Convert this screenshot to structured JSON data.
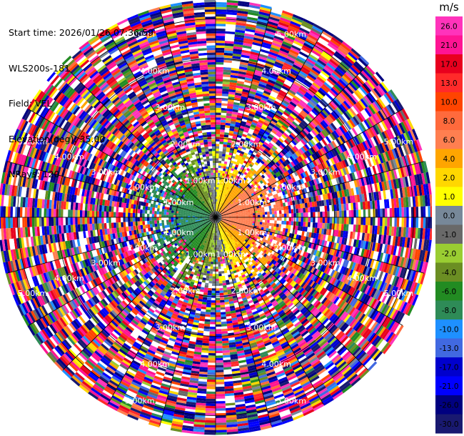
{
  "header": {
    "start_time": "Start time: 2026/01/26 07:36:59",
    "instrument": "WLS200s-181",
    "field": "Field: VEL",
    "elevation": "Elevation(deg): 35.00",
    "nrays": "NRays: 120"
  },
  "chart_data": {
    "type": "heatmap",
    "projection": "polar-ppi",
    "field": "VEL",
    "units": "m/s",
    "range_rings_km": [
      1,
      2,
      3,
      4,
      5
    ],
    "range_ring_labels": [
      "1.00km",
      "2.00km",
      "3.00km",
      "4.00km",
      "5.00km"
    ],
    "max_range_km": 5.45,
    "n_rays": 120,
    "grid": true,
    "description_pattern": "clean near-range dipole: negative velocities (blue/green) west, positive (yellow/orange) east, out to about 1.2 km; noisy speckle beyond",
    "colorbar": {
      "unit_label": "m/s",
      "ticks": [
        "26.0",
        "21.0",
        "17.0",
        "13.0",
        "10.0",
        "8.0",
        "6.0",
        "4.0",
        "2.0",
        "1.0",
        "0.0",
        "-1.0",
        "-2.0",
        "-4.0",
        "-6.0",
        "-8.0",
        "-10.0",
        "-13.0",
        "-17.0",
        "-21.0",
        "-26.0",
        "-30.0"
      ],
      "bins": [
        {
          "min": 26,
          "max": 30,
          "color": "#ff33bb"
        },
        {
          "min": 21,
          "max": 26,
          "color": "#ff1493"
        },
        {
          "min": 17,
          "max": 21,
          "color": "#e8001e"
        },
        {
          "min": 13,
          "max": 17,
          "color": "#ff2a2a"
        },
        {
          "min": 10,
          "max": 13,
          "color": "#ff4400"
        },
        {
          "min": 8,
          "max": 10,
          "color": "#ff6a3c"
        },
        {
          "min": 6,
          "max": 8,
          "color": "#ff7f50"
        },
        {
          "min": 4,
          "max": 6,
          "color": "#ffa500"
        },
        {
          "min": 2,
          "max": 4,
          "color": "#ffd700"
        },
        {
          "min": 1,
          "max": 2,
          "color": "#ffff00"
        },
        {
          "min": 0,
          "max": 1,
          "color": "#778899"
        },
        {
          "min": -1,
          "max": 0,
          "color": "#696969"
        },
        {
          "min": -2,
          "max": -1,
          "color": "#9acd32"
        },
        {
          "min": -4,
          "max": -2,
          "color": "#6b8e23"
        },
        {
          "min": -6,
          "max": -4,
          "color": "#228b22"
        },
        {
          "min": -8,
          "max": -6,
          "color": "#2e8b57"
        },
        {
          "min": -10,
          "max": -8,
          "color": "#1e90ff"
        },
        {
          "min": -13,
          "max": -10,
          "color": "#4169e1"
        },
        {
          "min": -17,
          "max": -13,
          "color": "#0000cd"
        },
        {
          "min": -21,
          "max": -17,
          "color": "#0000ff"
        },
        {
          "min": -26,
          "max": -21,
          "color": "#000080"
        },
        {
          "min": -30,
          "max": -26,
          "color": "#191970"
        }
      ]
    }
  }
}
